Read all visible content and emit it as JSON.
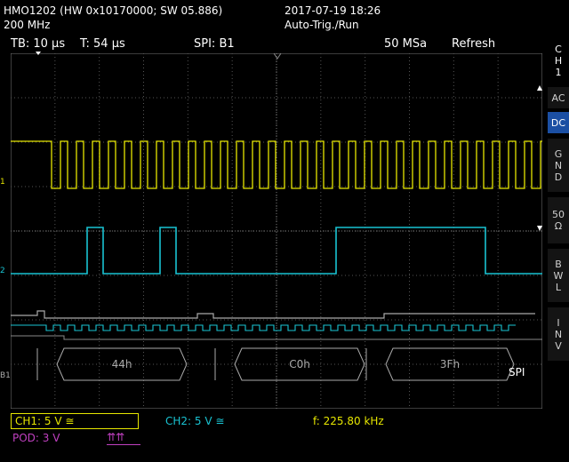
{
  "header": {
    "device": "HMO1202 (HW 0x10170000; SW 05.886)",
    "bandwidth": "200 MHz",
    "datetime": "2017-07-19 18:26",
    "trigger_mode": "Auto-Trig./Run"
  },
  "status_bar": {
    "timebase": "TB: 10 µs",
    "trigger_time": "T: 54 µs",
    "bus": "SPI: B1",
    "sample_rate": "50 MSa",
    "acq_mode": "Refresh"
  },
  "side_menu": {
    "channel": [
      "C",
      "H",
      "1"
    ],
    "buttons": [
      {
        "id": "ac",
        "lines": [
          "AC"
        ],
        "active": false
      },
      {
        "id": "dc",
        "lines": [
          "DC"
        ],
        "active": true
      },
      {
        "id": "gnd",
        "lines": [
          "G",
          "N",
          "D"
        ],
        "active": false
      },
      {
        "id": "50ohm",
        "lines": [
          "50",
          "Ω"
        ],
        "active": false
      },
      {
        "id": "bwl",
        "lines": [
          "B",
          "W",
          "L"
        ],
        "active": false
      },
      {
        "id": "inv",
        "lines": [
          "I",
          "N",
          "V"
        ],
        "active": false
      }
    ]
  },
  "markers": {
    "ch1": "1",
    "ch2": "2",
    "bus": "B1",
    "bus_protocol": "SPI"
  },
  "decode": {
    "frames": [
      "44h",
      "C0h",
      "3Fh"
    ]
  },
  "footer": {
    "ch1": "CH1: 5 V ≅",
    "ch2": "CH2: 5 V ≅",
    "frequency": "f: 225.80 kHz",
    "pod": "POD: 3 V"
  },
  "colors": {
    "ch1": "#e6e600",
    "ch2": "#19c3d2",
    "pod": "#c040c0",
    "grid": "#555555",
    "active_button": "#1b4fa3"
  }
}
